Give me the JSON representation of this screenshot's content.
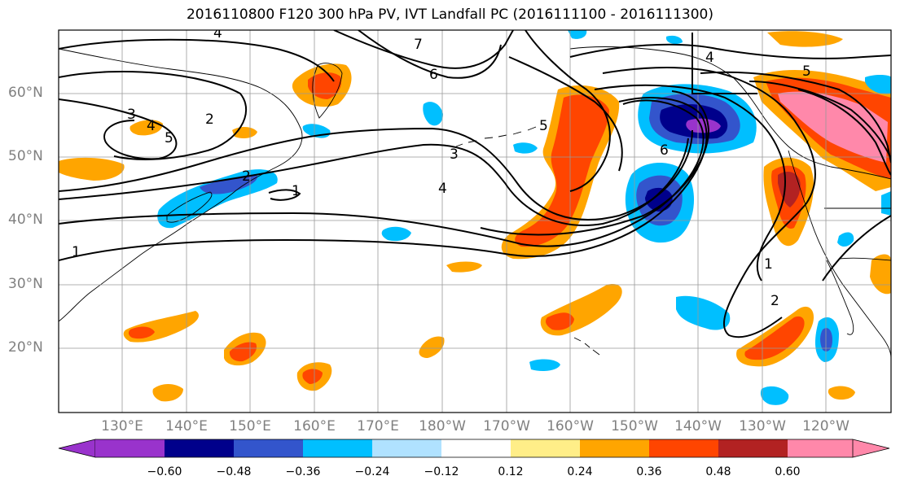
{
  "title": "2016110800 F120 300 hPa PV, IVT Landfall PC (2016111100 - 2016111300)",
  "map": {
    "lat_labels": [
      "60°N",
      "50°N",
      "40°N",
      "30°N",
      "20°N"
    ],
    "lon_labels": [
      "130°E",
      "140°E",
      "150°E",
      "160°E",
      "170°E",
      "180°W",
      "170°W",
      "160°W",
      "150°W",
      "140°W",
      "130°W",
      "120°W"
    ],
    "contour_labels": [
      "1",
      "2",
      "3",
      "4",
      "5",
      "6",
      "7"
    ]
  },
  "colorbar": {
    "tick_labels": [
      "−0.60",
      "−0.48",
      "−0.36",
      "−0.24",
      "−0.12",
      "0.12",
      "0.24",
      "0.36",
      "0.48",
      "0.60"
    ],
    "colors": [
      "#9933cc",
      "#00008b",
      "#3355cc",
      "#00bfff",
      "#b0e2ff",
      "#ffffff",
      "#ffee88",
      "#ffa500",
      "#ff4500",
      "#b22222",
      "#ff88aa"
    ]
  },
  "colors": {
    "negative_strong": "#3355cc",
    "negative": "#00bfff",
    "positive": "#ffa500",
    "positive_strong": "#ff4500",
    "extreme_positive": "#ff88aa"
  }
}
